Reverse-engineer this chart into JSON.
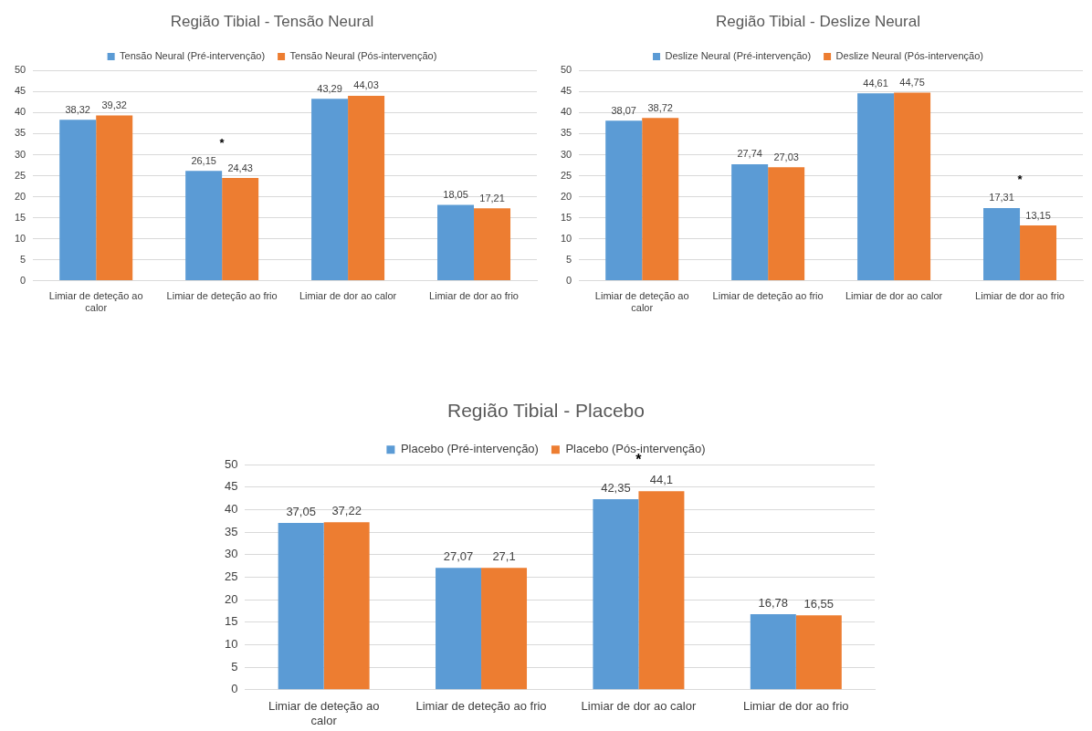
{
  "chart_data": [
    {
      "type": "bar",
      "title": "Região Tibial - Tensão Neural",
      "categories": [
        "Limiar de deteção ao calor",
        "Limiar de deteção ao frio",
        "Limiar de dor ao calor",
        "Limiar de dor ao frio"
      ],
      "series": [
        {
          "name": "Tensão Neural (Pré-intervenção)",
          "color": "#5b9bd5",
          "values": [
            38.32,
            26.15,
            43.29,
            18.05
          ],
          "value_labels": [
            "38,32",
            "26,15",
            "43,29",
            "18,05"
          ]
        },
        {
          "name": "Tensão Neural (Pós-intervenção)",
          "color": "#ed7d31",
          "values": [
            39.32,
            24.43,
            44.03,
            17.21
          ],
          "value_labels": [
            "39,32",
            "24,43",
            "44,03",
            "17,21"
          ]
        }
      ],
      "ylim": [
        0,
        50
      ],
      "yticks": [
        0,
        5,
        10,
        15,
        20,
        25,
        30,
        35,
        40,
        45,
        50
      ],
      "grid": "y",
      "legend": "top",
      "annotations": [
        {
          "text": "*",
          "x": "Limiar de deteção ao frio",
          "y": 26.15
        }
      ]
    },
    {
      "type": "bar",
      "title": "Região Tibial - Deslize Neural",
      "categories": [
        "Limiar de deteção ao calor",
        "Limiar de deteção ao frio",
        "Limiar de dor ao calor",
        "Limiar de dor ao frio"
      ],
      "series": [
        {
          "name": "Deslize Neural (Pré-intervenção)",
          "color": "#5b9bd5",
          "values": [
            38.07,
            27.74,
            44.61,
            17.31
          ],
          "value_labels": [
            "38,07",
            "27,74",
            "44,61",
            "17,31"
          ]
        },
        {
          "name": "Deslize Neural (Pós-intervenção)",
          "color": "#ed7d31",
          "values": [
            38.72,
            27.03,
            44.75,
            13.15
          ],
          "value_labels": [
            "38,72",
            "27,03",
            "44,75",
            "13,15"
          ]
        }
      ],
      "ylim": [
        0,
        50
      ],
      "yticks": [
        0,
        5,
        10,
        15,
        20,
        25,
        30,
        35,
        40,
        45,
        50
      ],
      "grid": "y",
      "legend": "top",
      "annotations": [
        {
          "text": "*",
          "x": "Limiar de dor ao frio",
          "y": 17.31
        }
      ]
    },
    {
      "type": "bar",
      "title": "Região Tibial - Placebo",
      "categories": [
        "Limiar de deteção ao calor",
        "Limiar de deteção ao frio",
        "Limiar de dor ao calor",
        "Limiar de dor ao frio"
      ],
      "series": [
        {
          "name": "Placebo (Pré-intervenção)",
          "color": "#5b9bd5",
          "values": [
            37.05,
            27.07,
            42.35,
            16.78
          ],
          "value_labels": [
            "37,05",
            "27,07",
            "42,35",
            "16,78"
          ]
        },
        {
          "name": "Placebo (Pós-intervenção)",
          "color": "#ed7d31",
          "values": [
            37.22,
            27.1,
            44.1,
            16.55
          ],
          "value_labels": [
            "37,22",
            "27,1",
            "44,1",
            "16,55"
          ]
        }
      ],
      "ylim": [
        0,
        50
      ],
      "yticks": [
        0,
        5,
        10,
        15,
        20,
        25,
        30,
        35,
        40,
        45,
        50
      ],
      "grid": "y",
      "legend": "top",
      "annotations": [
        {
          "text": "*",
          "x": "Limiar de dor ao calor",
          "y": 44.1
        }
      ]
    }
  ]
}
